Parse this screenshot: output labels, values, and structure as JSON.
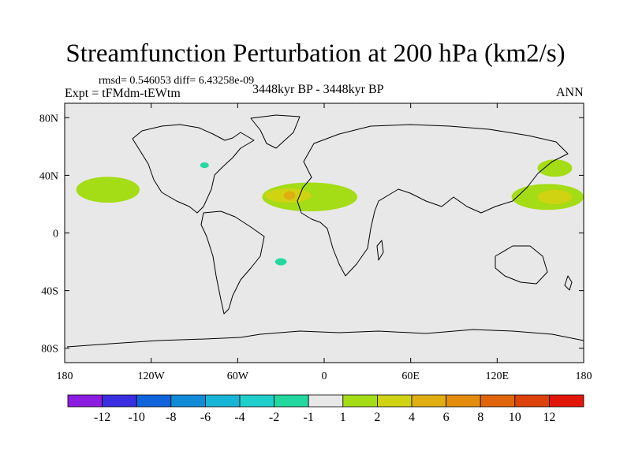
{
  "chart_data": {
    "type": "heatmap",
    "title": "Streamfunction Perturbation at 200 hPa (km2/s)",
    "stats_text": "rmsd= 0.546053 diff= 6.43258e-09",
    "experiment_label": "Expt = tFMdm-tEWtm",
    "period_label": "3448kyr BP - 3448kyr BP",
    "season_label": "ANN",
    "lon_range": [
      -180,
      180
    ],
    "lat_range": [
      -90,
      90
    ],
    "x_ticks": [
      {
        "value": -180,
        "label": "180"
      },
      {
        "value": -120,
        "label": "120W"
      },
      {
        "value": -60,
        "label": "60W"
      },
      {
        "value": 0,
        "label": "0"
      },
      {
        "value": 60,
        "label": "60E"
      },
      {
        "value": 120,
        "label": "120E"
      },
      {
        "value": 180,
        "label": "180"
      }
    ],
    "y_ticks": [
      {
        "value": 80,
        "label": "80N"
      },
      {
        "value": 40,
        "label": "40N"
      },
      {
        "value": 0,
        "label": "0"
      },
      {
        "value": -40,
        "label": "40S"
      },
      {
        "value": -80,
        "label": "80S"
      }
    ],
    "colorbar": {
      "labels": [
        "-12",
        "-10",
        "-8",
        "-6",
        "-4",
        "-2",
        "-1",
        "1",
        "2",
        "4",
        "6",
        "8",
        "10",
        "12"
      ],
      "colors": [
        "#8c1ce0",
        "#3a2ee0",
        "#1064dc",
        "#118bd8",
        "#16b4d6",
        "#1fcfcb",
        "#22d89e",
        "#e8e8e8",
        "#a4dc16",
        "#cfd312",
        "#e0ae10",
        "#e48c0c",
        "#e0650b",
        "#dc4209",
        "#e21608"
      ]
    },
    "regions": [
      {
        "name": "north-pacific-west-anomaly",
        "lon": 160,
        "lat": 45,
        "lon_radius": 12,
        "lat_radius": 6,
        "level": "1 to 2"
      },
      {
        "name": "northeast-pacific-anomaly",
        "lon": -150,
        "lat": 30,
        "lon_radius": 22,
        "lat_radius": 9,
        "level": "1 to 2"
      },
      {
        "name": "west-pacific-anomaly",
        "lon": 155,
        "lat": 25,
        "lon_radius": 25,
        "lat_radius": 9,
        "level": "1 to 2"
      },
      {
        "name": "west-pacific-core",
        "lon": 160,
        "lat": 25,
        "lon_radius": 12,
        "lat_radius": 5,
        "level": "2 to 4"
      },
      {
        "name": "atlantic-africa-anomaly",
        "lon": -10,
        "lat": 25,
        "lon_radius": 33,
        "lat_radius": 10,
        "level": "1 to 2"
      },
      {
        "name": "atlantic-africa-core",
        "lon": -25,
        "lat": 26,
        "lon_radius": 16,
        "lat_radius": 5,
        "level": "2 to 4"
      },
      {
        "name": "atlantic-africa-center",
        "lon": -24,
        "lat": 26,
        "lon_radius": 4,
        "lat_radius": 3,
        "level": "4 to 6"
      },
      {
        "name": "great-lakes-anomaly",
        "lon": -83,
        "lat": 47,
        "lon_radius": 3,
        "lat_radius": 2,
        "level": "-2 to -1"
      },
      {
        "name": "south-atlantic-anomaly",
        "lon": -30,
        "lat": -20,
        "lon_radius": 4,
        "lat_radius": 2.5,
        "level": "-2 to -1"
      }
    ]
  }
}
